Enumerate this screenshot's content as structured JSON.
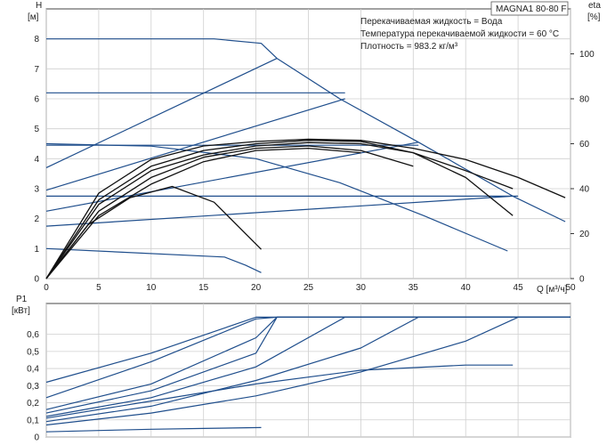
{
  "chart_data": [
    {
      "type": "line",
      "title": "MAGNA1 80-80 F",
      "annotations": [
        "Перекачиваемая жидкость = Вода",
        "Температура перекачиваемой жидкости = 60 °C",
        "Плотность = 983.2 кг/м³"
      ],
      "ylabel_left": "H",
      "ylabel_left_unit": "[м]",
      "ylabel_right": "eta",
      "ylabel_right_unit": "[%]",
      "xlabel": "Q [м³/ч]",
      "xlim": [
        0,
        50
      ],
      "ylim_left": [
        0,
        9
      ],
      "ylim_right": [
        0,
        120
      ],
      "x_ticks": [
        0,
        5,
        10,
        15,
        20,
        25,
        30,
        35,
        40,
        45,
        50
      ],
      "y_ticks_left": [
        0,
        1,
        2,
        3,
        4,
        5,
        6,
        7,
        8
      ],
      "y_ticks_right": [
        0,
        20,
        40,
        60,
        80,
        100
      ],
      "grid": true,
      "series": [
        {
          "axis": "left",
          "color": "#1f4e8c",
          "x": [
            0,
            17,
            19,
            20.5
          ],
          "y": [
            1,
            0.72,
            0.45,
            0.2
          ]
        },
        {
          "axis": "left",
          "color": "#1f4e8c",
          "x": [
            0,
            10,
            20,
            28,
            36,
            44
          ],
          "y": [
            4.5,
            4.42,
            4.0,
            3.2,
            2.1,
            0.92
          ]
        },
        {
          "axis": "left",
          "color": "#1f4e8c",
          "x": [
            0,
            16,
            20.5,
            22,
            28,
            35.5,
            44.5,
            49.5
          ],
          "y": [
            8.0,
            8.0,
            7.85,
            7.35,
            6.0,
            4.55,
            2.75,
            1.9
          ]
        },
        {
          "axis": "left",
          "color": "#1f4e8c",
          "x": [
            0,
            28.5
          ],
          "y": [
            6.2,
            6.2
          ]
        },
        {
          "axis": "left",
          "color": "#1f4e8c",
          "x": [
            0,
            35.5
          ],
          "y": [
            4.45,
            4.45
          ]
        },
        {
          "axis": "left",
          "color": "#1f4e8c",
          "x": [
            0,
            45
          ],
          "y": [
            2.75,
            2.75
          ]
        },
        {
          "axis": "left",
          "color": "#1f4e8c",
          "x": [
            0,
            22
          ],
          "y": [
            3.7,
            7.35
          ]
        },
        {
          "axis": "left",
          "color": "#1f4e8c",
          "x": [
            0,
            28.5
          ],
          "y": [
            2.95,
            6.0
          ]
        },
        {
          "axis": "left",
          "color": "#1f4e8c",
          "x": [
            0,
            35.5
          ],
          "y": [
            2.25,
            4.55
          ]
        },
        {
          "axis": "left",
          "color": "#1f4e8c",
          "x": [
            0,
            44.5
          ],
          "y": [
            1.75,
            2.75
          ]
        },
        {
          "axis": "right",
          "color": "#111111",
          "x": [
            0,
            5,
            10,
            15,
            20,
            25,
            30,
            35,
            40,
            45,
            49.5
          ],
          "y": [
            0,
            38,
            53,
            59,
            61,
            62,
            61.5,
            58,
            53,
            45,
            36
          ]
        },
        {
          "axis": "right",
          "color": "#111111",
          "x": [
            0,
            5,
            10,
            15,
            20,
            25,
            30,
            35,
            40,
            44.5
          ],
          "y": [
            0,
            35,
            50,
            57,
            60,
            61.5,
            61,
            56,
            45,
            28
          ]
        },
        {
          "axis": "right",
          "color": "#111111",
          "x": [
            0,
            5,
            10,
            15,
            20,
            25,
            30,
            35,
            40,
            44.5
          ],
          "y": [
            0,
            33,
            48,
            55,
            59,
            60.5,
            60,
            56,
            48,
            40
          ]
        },
        {
          "axis": "right",
          "color": "#111111",
          "x": [
            0,
            5,
            10,
            15,
            20,
            25,
            30,
            35
          ],
          "y": [
            0,
            30,
            45,
            54,
            58,
            59,
            57,
            50
          ]
        },
        {
          "axis": "right",
          "color": "#111111",
          "x": [
            0,
            5,
            10,
            15,
            20,
            25,
            30
          ],
          "y": [
            0,
            28,
            42,
            52,
            57,
            58,
            56
          ]
        },
        {
          "axis": "right",
          "color": "#111111",
          "x": [
            0,
            4,
            8,
            12,
            16,
            20.5
          ],
          "y": [
            0,
            24,
            36,
            41,
            34,
            13
          ]
        }
      ]
    },
    {
      "type": "line",
      "ylabel": "P1",
      "ylabel_unit": "[кВт]",
      "xlim": [
        0,
        50
      ],
      "ylim": [
        0,
        0.78
      ],
      "y_ticks": [
        0,
        0.1,
        0.2,
        0.3,
        0.4,
        0.5,
        0.6
      ],
      "y_tick_labels": [
        "0",
        "0,1",
        "0,2",
        "0,3",
        "0,4",
        "0,5",
        "0,6"
      ],
      "grid": true,
      "series": [
        {
          "color": "#1f4e8c",
          "x": [
            0,
            5,
            10,
            15,
            20.5
          ],
          "y": [
            0.03,
            0.038,
            0.045,
            0.05,
            0.055
          ]
        },
        {
          "color": "#1f4e8c",
          "x": [
            0,
            10,
            20,
            30,
            40,
            44.5
          ],
          "y": [
            0.11,
            0.21,
            0.31,
            0.39,
            0.42,
            0.42
          ]
        },
        {
          "color": "#1f4e8c",
          "x": [
            0,
            10,
            20,
            30,
            40,
            45,
            50
          ],
          "y": [
            0.07,
            0.14,
            0.24,
            0.38,
            0.56,
            0.7,
            0.7
          ]
        },
        {
          "color": "#1f4e8c",
          "x": [
            0,
            10,
            20,
            30,
            35.5,
            50
          ],
          "y": [
            0.09,
            0.18,
            0.33,
            0.52,
            0.7,
            0.7
          ]
        },
        {
          "color": "#1f4e8c",
          "x": [
            0,
            10,
            20,
            28.5,
            50
          ],
          "y": [
            0.12,
            0.23,
            0.41,
            0.7,
            0.7
          ]
        },
        {
          "color": "#1f4e8c",
          "x": [
            0,
            10,
            20,
            22,
            50
          ],
          "y": [
            0.16,
            0.31,
            0.58,
            0.7,
            0.7
          ]
        },
        {
          "color": "#1f4e8c",
          "x": [
            0,
            10,
            20,
            22,
            50
          ],
          "y": [
            0.14,
            0.27,
            0.49,
            0.7,
            0.7
          ]
        },
        {
          "color": "#1f4e8c",
          "x": [
            0,
            10,
            20,
            22,
            50
          ],
          "y": [
            0.23,
            0.44,
            0.69,
            0.7,
            0.7
          ]
        },
        {
          "color": "#1f4e8c",
          "x": [
            0,
            10,
            20,
            22,
            50
          ],
          "y": [
            0.32,
            0.49,
            0.7,
            0.7,
            0.7
          ]
        }
      ]
    }
  ]
}
